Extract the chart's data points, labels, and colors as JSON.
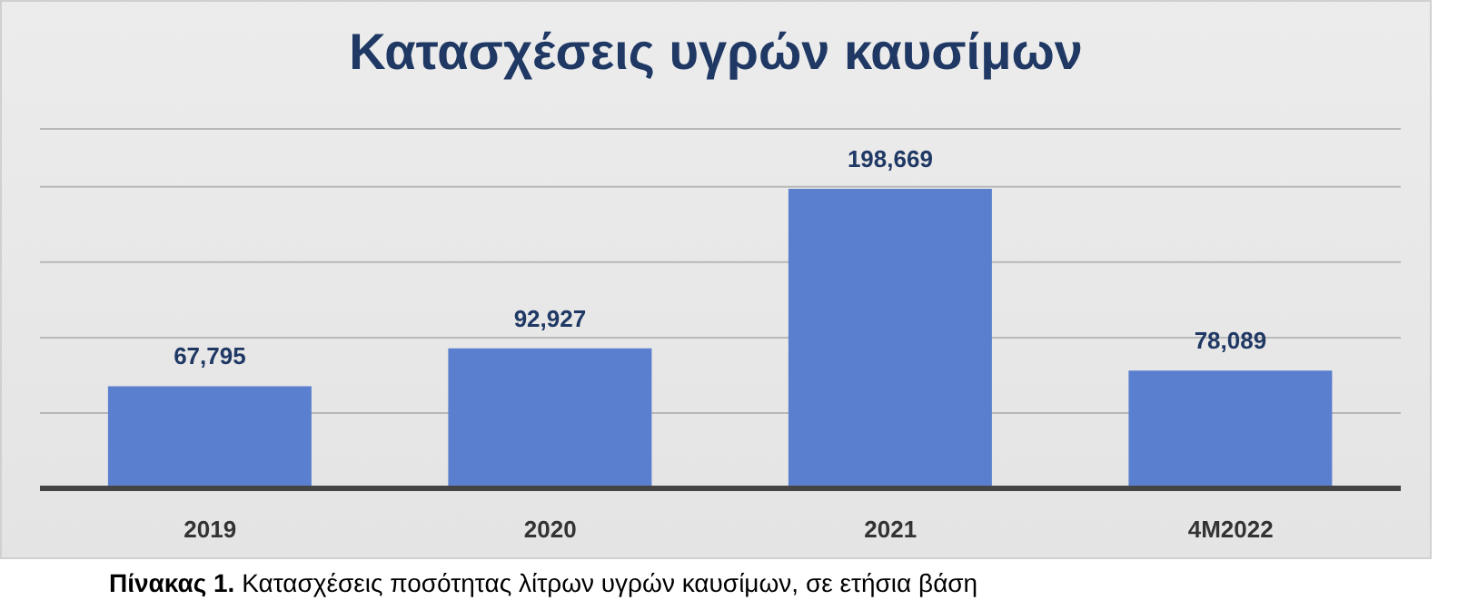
{
  "chart_data": {
    "type": "bar",
    "title": "Κατασχέσεις υγρών καυσίμων",
    "categories": [
      "2019",
      "2020",
      "2021",
      "4M2022"
    ],
    "values": [
      67795,
      92927,
      198669,
      78089
    ],
    "value_labels": [
      "67,795",
      "92,927",
      "198,669",
      "78,089"
    ],
    "color": "#5b7fcf",
    "grid": "y",
    "tick_labels": "x",
    "annotations": [
      "Πίνακας 1. Κατασχέσεις ποσότητας λίτρων υγρών καυσίμων, σε ετήσια βάση"
    ]
  }
}
